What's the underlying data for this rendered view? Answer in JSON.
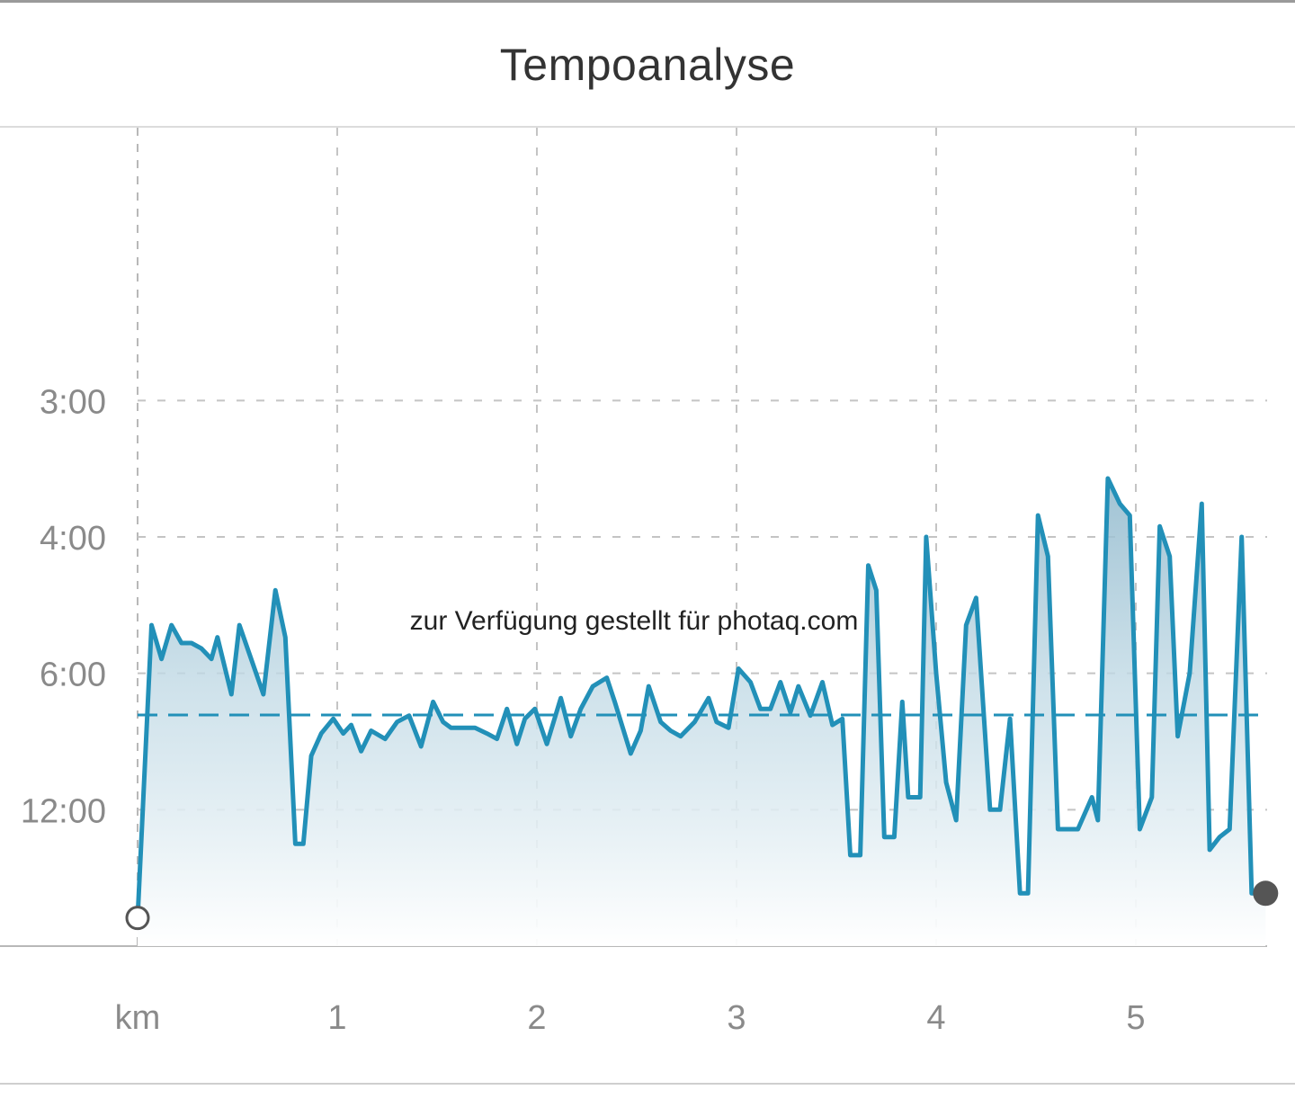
{
  "header": {
    "title": "Tempoanalyse"
  },
  "watermark": "zur Verfügung gestellt für photaq.com",
  "colors": {
    "line": "#2290b8",
    "fill_top": "#a9c9d8",
    "fill_bottom": "#ffffff",
    "grid": "#c4c4c4",
    "axis": "#b8b8b8"
  },
  "chart_data": {
    "type": "area",
    "title": "Tempoanalyse",
    "xlabel": "km",
    "ylabel": "",
    "x_unit_label": "km",
    "xlim": [
      0,
      5.65
    ],
    "x_ticks": [
      1,
      2,
      3,
      4,
      5
    ],
    "x_tick_labels": [
      "1",
      "2",
      "3",
      "4",
      "5"
    ],
    "y_scale": "reciprocal (pace, min/km)",
    "y_ticks": [
      3,
      4,
      6,
      12
    ],
    "y_tick_labels": [
      "3:00",
      "4:00",
      "6:00",
      "12:00"
    ],
    "average_pace": "7:05",
    "average_pace_min_per_km": 7.08,
    "grid": true,
    "start_marker": "open circle",
    "end_marker": "filled circle",
    "series": [
      {
        "x": [
          0,
          0.07,
          0.12,
          0.17,
          0.22,
          0.27,
          0.32,
          0.37,
          0.4,
          0.47,
          0.51,
          0.56,
          0.63,
          0.69,
          0.74,
          0.79,
          0.83,
          0.87,
          0.92,
          0.98,
          1.03,
          1.07,
          1.12,
          1.17,
          1.24,
          1.3,
          1.36,
          1.42,
          1.48,
          1.53,
          1.57,
          1.64,
          1.69,
          1.75,
          1.8,
          1.85,
          1.9,
          1.94,
          1.99,
          2.05,
          2.12,
          2.17,
          2.22,
          2.28,
          2.35,
          2.39,
          2.47,
          2.52,
          2.56,
          2.62,
          2.67,
          2.72,
          2.79,
          2.86,
          2.9,
          2.96,
          3.01,
          3.07,
          3.12,
          3.17,
          3.22,
          3.27,
          3.31,
          3.37,
          3.43,
          3.48,
          3.53,
          3.57,
          3.62,
          3.66,
          3.7,
          3.74,
          3.79,
          3.83,
          3.86,
          3.92,
          3.95,
          4.0,
          4.05,
          4.1,
          4.15,
          4.2,
          4.27,
          4.32,
          4.37,
          4.42,
          4.46,
          4.51,
          4.56,
          4.61,
          4.66,
          4.71,
          4.78,
          4.81,
          4.86,
          4.92,
          4.97,
          5.02,
          5.08,
          5.12,
          5.17,
          5.21,
          5.27,
          5.33,
          5.37,
          5.42,
          5.47,
          5.53,
          5.58,
          5.65
        ],
        "y": [
          60,
          5.1,
          5.7,
          5.1,
          5.4,
          5.4,
          5.5,
          5.7,
          5.3,
          6.5,
          5.1,
          5.6,
          6.5,
          4.6,
          5.3,
          16,
          16,
          8.6,
          7.7,
          7.2,
          7.7,
          7.4,
          8.4,
          7.6,
          7.9,
          7.3,
          7.1,
          8.2,
          6.7,
          7.3,
          7.5,
          7.5,
          7.5,
          7.7,
          7.9,
          6.9,
          8.1,
          7.2,
          6.9,
          8.1,
          6.6,
          7.8,
          6.9,
          6.3,
          6.1,
          6.7,
          8.5,
          7.6,
          6.3,
          7.3,
          7.6,
          7.8,
          7.3,
          6.6,
          7.3,
          7.5,
          5.9,
          6.2,
          6.9,
          6.9,
          6.2,
          7.0,
          6.3,
          7.1,
          6.2,
          7.4,
          7.2,
          18,
          18,
          4.3,
          4.6,
          15,
          15,
          6.7,
          11,
          11,
          4.0,
          6.0,
          10,
          13,
          5.1,
          4.7,
          12,
          12,
          7.2,
          31,
          31,
          3.8,
          4.2,
          14,
          14,
          14,
          11,
          13,
          3.5,
          3.7,
          3.8,
          14,
          11,
          3.9,
          4.2,
          7.8,
          6.0,
          3.7,
          17,
          15,
          14,
          4.0,
          31,
          31
        ]
      }
    ]
  }
}
